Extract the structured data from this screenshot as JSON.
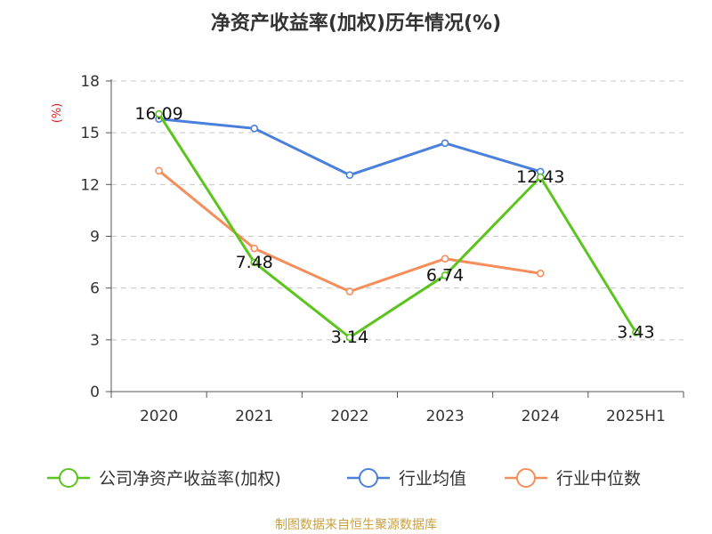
{
  "chart_data": {
    "type": "line",
    "title": "净资产收益率(加权)历年情况(%)",
    "ylabel": "(%)",
    "categories": [
      "2020",
      "2021",
      "2022",
      "2023",
      "2024",
      "2025H1"
    ],
    "yticks": [
      "0",
      "3",
      "6",
      "9",
      "12",
      "15",
      "18"
    ],
    "ylim": [
      0,
      18
    ],
    "grid": true,
    "legend_position": "bottom",
    "series": [
      {
        "name": "公司净资产收益率(加权)",
        "color": "#5cc41e",
        "values": [
          16.09,
          7.48,
          3.14,
          6.74,
          12.43,
          3.43
        ],
        "labels": [
          "16.09",
          "7.48",
          "3.14",
          "6.74",
          "12.43",
          "3.43"
        ]
      },
      {
        "name": "行业均值",
        "color": "#4a7fdb",
        "values": [
          15.8,
          15.25,
          12.55,
          14.4,
          12.75,
          null
        ]
      },
      {
        "name": "行业中位数",
        "color": "#f58e5a",
        "values": [
          12.8,
          8.3,
          5.8,
          7.7,
          6.85,
          null
        ]
      }
    ]
  },
  "footer": {
    "source": "制图数据来自恒生聚源数据库"
  }
}
